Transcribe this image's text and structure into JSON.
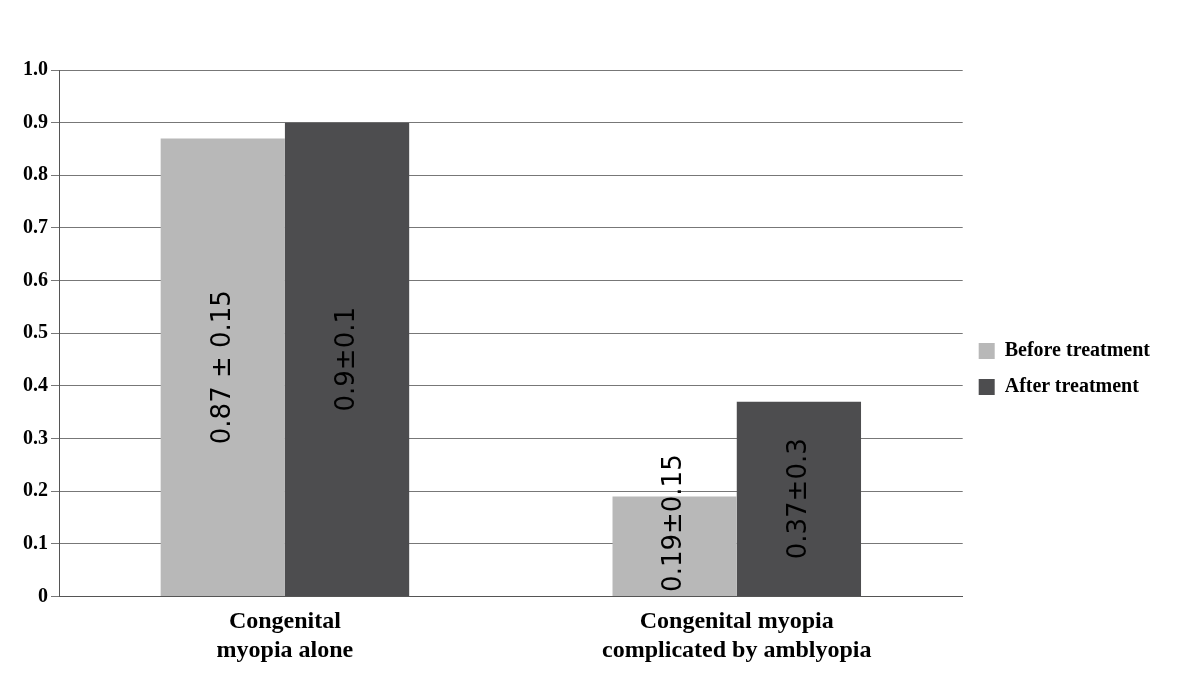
{
  "chart_data": {
    "type": "bar",
    "categories": [
      "Congenital myopia alone",
      "Congenital myopia complicated by amblyopia"
    ],
    "series": [
      {
        "name": "Before treatment",
        "color": "#b8b8b8",
        "values": [
          0.87,
          0.19
        ],
        "value_labels": [
          "0.87 ± 0.15",
          "0.19±0.15"
        ]
      },
      {
        "name": "After treatment",
        "color": "#4d4d4f",
        "values": [
          0.9,
          0.37
        ],
        "value_labels": [
          "0.9±0.1",
          "0.37±0.3"
        ]
      }
    ],
    "ylim": [
      0,
      1
    ],
    "yticks": [
      0,
      0.1,
      0.2,
      0.3,
      0.4,
      0.5,
      0.6,
      0.7,
      0.8,
      0.9,
      {
        "value": 1,
        "label": "1.0"
      }
    ],
    "grid": "y",
    "legend": "right"
  }
}
